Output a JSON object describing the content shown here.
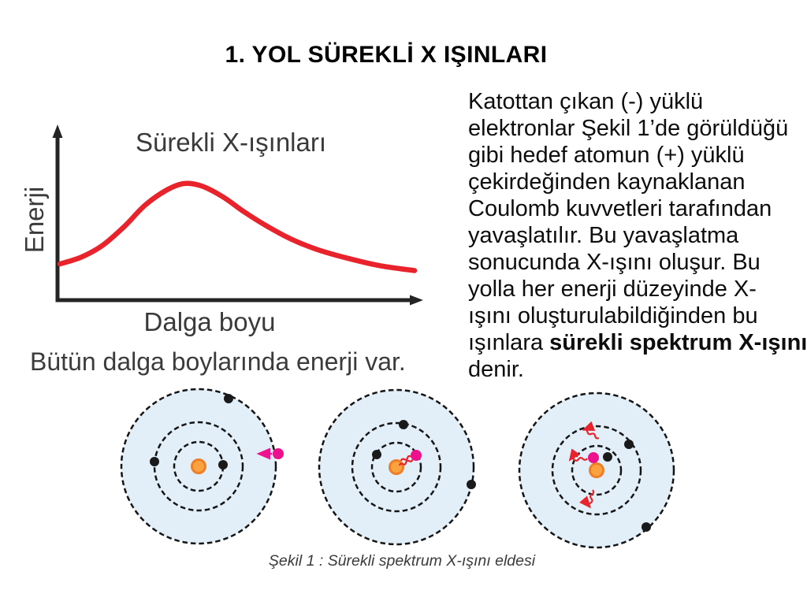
{
  "slide": {
    "title": "1. YOL SÜREKLİ X IŞINLARI"
  },
  "chart": {
    "title": "Sürekli X-ışınları",
    "y_axis_label": "Enerji",
    "x_axis_label": "Dalga boyu",
    "note": "Bütün dalga boylarında enerji var."
  },
  "chart_data": {
    "type": "line",
    "title": "Sürekli X-ışınları",
    "xlabel": "Dalga boyu",
    "ylabel": "Enerji",
    "axes_unlabeled": true,
    "grid": false,
    "legend": false,
    "xlim": [
      0,
      1
    ],
    "ylim": [
      0,
      1
    ],
    "x": [
      0,
      0.06,
      0.12,
      0.18,
      0.24,
      0.3,
      0.35,
      0.4,
      0.46,
      0.52,
      0.58,
      0.65,
      0.72,
      0.8,
      0.9,
      1.0
    ],
    "series": [
      {
        "name": "Sürekli spektrum X-ışını",
        "values": [
          0.22,
          0.26,
          0.33,
          0.44,
          0.57,
          0.66,
          0.7,
          0.685,
          0.62,
          0.53,
          0.45,
          0.37,
          0.31,
          0.26,
          0.21,
          0.18
        ]
      }
    ],
    "annotation": "Bütün dalga boylarında enerji var."
  },
  "body_text": {
    "lines": [
      "Katottan çıkan (-) yüklü",
      "elektronlar Şekil 1’de görüldüğü",
      "gibi hedef atomun (+) yüklü",
      "çekirdeğinden kaynaklanan",
      "Coulomb kuvvetleri tarafından",
      "yavaşlatılır. Bu yavaşlatma",
      "sonucunda X-ışını oluşur. Bu",
      "yolla her enerji düzeyinde X-",
      "ışını oluşturulabildiğinden bu"
    ],
    "emphasis_line": {
      "normal": "ışınlara ",
      "bold": "sürekli spektrum X-ışını"
    },
    "closing_line": "denir."
  },
  "figure": {
    "caption": "Şekil 1 : Sürekli spektrum X-ışını eldesi"
  },
  "colors": {
    "curve_red": "#e8232b",
    "xray_red": "#e8232b",
    "electron_pink": "#ee118d",
    "electron_black": "#1a1a1a",
    "nucleus_orange": "#f9a23e",
    "nucleus_ring": "#ee7f28",
    "orbit_fill": "#e2eff8",
    "orbit_stroke": "#151515"
  }
}
